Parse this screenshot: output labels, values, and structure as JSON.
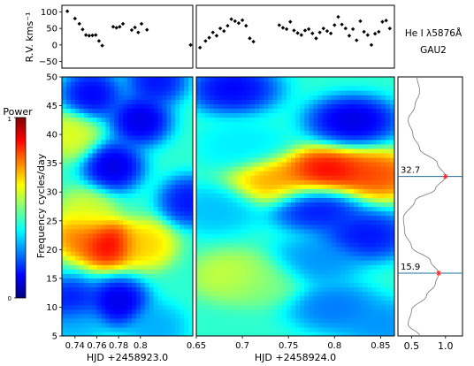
{
  "line_label": "He I λ5876Å",
  "star_label": "GAU2",
  "colorbar": {
    "title": "Power",
    "tick_top": "1",
    "tick_bottom": "0",
    "colormap": [
      "#00007f",
      "#0000ff",
      "#007fff",
      "#00ffff",
      "#7fff7f",
      "#ffff00",
      "#ff7f00",
      "#ff0000",
      "#7f0000"
    ]
  },
  "chart_data": [
    {
      "type": "scatter",
      "ylabel": "R.V. kms⁻¹",
      "ylim": [
        -70,
        120
      ],
      "yticks": [
        "100",
        "50",
        "0",
        "−50"
      ],
      "yticks_values": [
        100,
        50,
        0,
        -50
      ],
      "panels": [
        {
          "xlim": [
            0.728,
            0.848
          ],
          "x": [
            0.733,
            0.74,
            0.744,
            0.747,
            0.75,
            0.753,
            0.756,
            0.759,
            0.762,
            0.765,
            0.775,
            0.778,
            0.781,
            0.784,
            0.792,
            0.795,
            0.798,
            0.801,
            0.806,
            0.846
          ],
          "y": [
            102,
            80,
            64,
            47,
            30,
            28,
            29,
            30,
            12,
            -2,
            55,
            52,
            55,
            64,
            45,
            53,
            38,
            64,
            46,
            0
          ]
        },
        {
          "xlim": [
            0.65,
            0.865
          ],
          "x": [
            0.654,
            0.66,
            0.664,
            0.668,
            0.672,
            0.676,
            0.68,
            0.684,
            0.688,
            0.692,
            0.696,
            0.7,
            0.704,
            0.708,
            0.712,
            0.74,
            0.744,
            0.748,
            0.752,
            0.756,
            0.76,
            0.764,
            0.768,
            0.772,
            0.776,
            0.78,
            0.784,
            0.788,
            0.792,
            0.796,
            0.8,
            0.804,
            0.808,
            0.812,
            0.816,
            0.82,
            0.824,
            0.828,
            0.832,
            0.836,
            0.84,
            0.844,
            0.848,
            0.852,
            0.856,
            0.86
          ],
          "y": [
            -8,
            12,
            22,
            38,
            28,
            50,
            42,
            58,
            78,
            72,
            66,
            75,
            58,
            20,
            10,
            60,
            52,
            48,
            70,
            44,
            36,
            30,
            44,
            48,
            35,
            20,
            38,
            50,
            42,
            35,
            60,
            85,
            62,
            50,
            28,
            48,
            14,
            72,
            40,
            30,
            0,
            34,
            40,
            70,
            74,
            50
          ]
        }
      ]
    },
    {
      "type": "heatmap",
      "ylabel": "Frequency cycles/day",
      "ylim": [
        5,
        50
      ],
      "yticks": [
        "5",
        "10",
        "15",
        "20",
        "25",
        "30",
        "35",
        "40",
        "45",
        "50"
      ],
      "yticks_values": [
        5,
        10,
        15,
        20,
        25,
        30,
        35,
        40,
        45,
        50
      ],
      "panels": [
        {
          "xlabel": "HJD +2458923.0",
          "xlim": [
            0.728,
            0.848
          ],
          "xticks": [
            "0.74",
            "0.76",
            "0.78",
            "0.8"
          ],
          "xticks_values": [
            0.74,
            0.76,
            0.78,
            0.8
          ],
          "features": [
            {
              "x": 0.77,
              "y": 21.0,
              "power": 0.95
            },
            {
              "x": 0.745,
              "y": 22.5,
              "power": 0.8
            },
            {
              "x": 0.805,
              "y": 21.0,
              "power": 0.7
            },
            {
              "x": 0.75,
              "y": 26.5,
              "power": 0.6
            },
            {
              "x": 0.735,
              "y": 40.0,
              "power": 0.62
            },
            {
              "x": 0.775,
              "y": 34.5,
              "power": 0.05
            },
            {
              "x": 0.8,
              "y": 42.5,
              "power": 0.05
            },
            {
              "x": 0.755,
              "y": 47.0,
              "power": 0.08
            },
            {
              "x": 0.815,
              "y": 49.5,
              "power": 0.1
            },
            {
              "x": 0.845,
              "y": 28.5,
              "power": 0.1
            },
            {
              "x": 0.78,
              "y": 11.0,
              "power": 0.05
            },
            {
              "x": 0.735,
              "y": 11.0,
              "power": 0.1
            },
            {
              "x": 0.74,
              "y": 7.0,
              "power": 0.3
            },
            {
              "x": 0.815,
              "y": 6.5,
              "power": 0.28
            }
          ]
        },
        {
          "xlabel": "HJD +2458924.0",
          "xlim": [
            0.65,
            0.865
          ],
          "xticks": [
            "0.65",
            "0.7",
            "0.75",
            "0.8",
            "0.85"
          ],
          "xticks_values": [
            0.65,
            0.7,
            0.75,
            0.8,
            0.85
          ],
          "features": [
            {
              "x": 0.79,
              "y": 33.5,
              "power": 0.95
            },
            {
              "x": 0.735,
              "y": 32.0,
              "power": 0.75
            },
            {
              "x": 0.845,
              "y": 33.0,
              "power": 0.85
            },
            {
              "x": 0.69,
              "y": 15.5,
              "power": 0.6
            },
            {
              "x": 0.72,
              "y": 14.5,
              "power": 0.5
            },
            {
              "x": 0.78,
              "y": 27.5,
              "power": 0.1
            },
            {
              "x": 0.82,
              "y": 42.5,
              "power": 0.05
            },
            {
              "x": 0.69,
              "y": 48.0,
              "power": 0.08
            },
            {
              "x": 0.835,
              "y": 22.5,
              "power": 0.1
            },
            {
              "x": 0.78,
              "y": 18.0,
              "power": 0.25
            },
            {
              "x": 0.67,
              "y": 27.0,
              "power": 0.3
            },
            {
              "x": 0.8,
              "y": 10.0,
              "power": 0.22
            },
            {
              "x": 0.855,
              "y": 7.0,
              "power": 0.25
            },
            {
              "x": 0.7,
              "y": 38.0,
              "power": 0.35
            }
          ]
        }
      ]
    },
    {
      "type": "line",
      "xlim": [
        0.3,
        1.25
      ],
      "xticks": [
        "0.5",
        "1.0"
      ],
      "xticks_values": [
        0.5,
        1.0
      ],
      "ylim": [
        5,
        50
      ],
      "curve": {
        "y": [
          5,
          7,
          9.5,
          12,
          14,
          15.9,
          18,
          20.5,
          23,
          25.5,
          28.5,
          30.5,
          32.7,
          35,
          37.5,
          40,
          42.5,
          45,
          47.5,
          50
        ],
        "power": [
          0.62,
          0.45,
          0.5,
          0.72,
          0.85,
          0.9,
          0.78,
          0.5,
          0.4,
          0.38,
          0.55,
          0.85,
          1.0,
          0.88,
          0.62,
          0.52,
          0.45,
          0.55,
          0.62,
          0.58
        ]
      },
      "peaks": [
        {
          "label": "32.7",
          "frequency": 32.7,
          "power": 1.0
        },
        {
          "label": "15.9",
          "frequency": 15.9,
          "power": 0.9
        }
      ]
    }
  ]
}
